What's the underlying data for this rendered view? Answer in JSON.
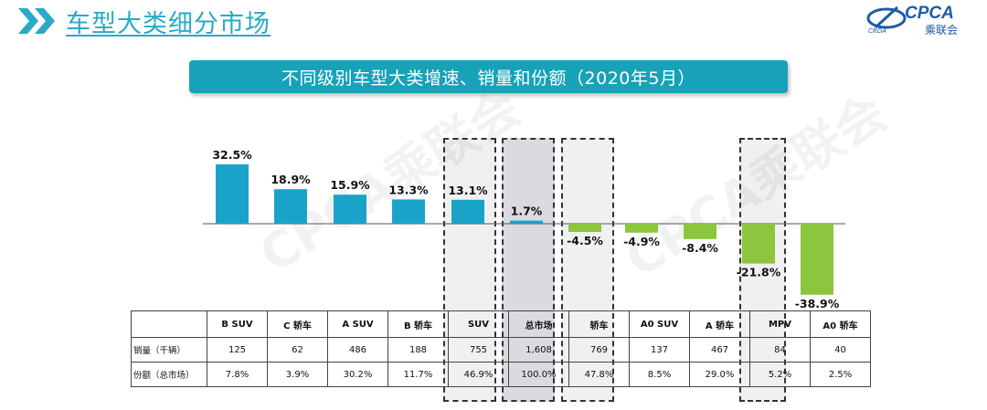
{
  "header": {
    "title": "车型大类细分市场",
    "logo_brand": "CPCA",
    "logo_sub": "乘联会",
    "logo_mark": "CRDA"
  },
  "banner": {
    "text": "不同级别车型大类增速、销量和份额（2020年5月）"
  },
  "watermark": {
    "text": "CPCA乘联会"
  },
  "colors": {
    "accent": "#17a2b8",
    "positive_bar": "#1aa3c9",
    "negative_bar": "#8cc63f",
    "title": "#2aa9c8"
  },
  "chart_data": {
    "type": "bar",
    "title": "不同级别车型大类增速、销量和份额（2020年5月）",
    "categories": [
      "B SUV",
      "C 轿车",
      "A SUV",
      "B 轿车",
      "SUV",
      "总市场",
      "轿车",
      "A0 SUV",
      "A 轿车",
      "MPV",
      "A0 轿车"
    ],
    "series": [
      {
        "name": "增速",
        "values": [
          32.5,
          18.9,
          15.9,
          13.3,
          13.1,
          1.7,
          -4.5,
          -4.9,
          -8.4,
          -21.8,
          -38.9
        ],
        "labels": [
          "32.5%",
          "18.9%",
          "15.9%",
          "13.3%",
          "13.1%",
          "1.7%",
          "-4.5%",
          "-4.9%",
          "-8.4%",
          "-21.8%",
          "-38.9%"
        ]
      }
    ],
    "highlighted": [
      "SUV",
      "总市场",
      "轿车",
      "MPV"
    ],
    "ylim": [
      -40,
      35
    ],
    "xlabel": "",
    "ylabel": ""
  },
  "table": {
    "rows": [
      {
        "label": "销量（千辆）",
        "values": [
          "125",
          "62",
          "486",
          "188",
          "755",
          "1,608",
          "769",
          "137",
          "467",
          "84",
          "40"
        ]
      },
      {
        "label": "份额（总市场）",
        "values": [
          "7.8%",
          "3.9%",
          "30.2%",
          "11.7%",
          "46.9%",
          "100.0%",
          "47.8%",
          "8.5%",
          "29.0%",
          "5.2%",
          "2.5%"
        ]
      }
    ]
  }
}
